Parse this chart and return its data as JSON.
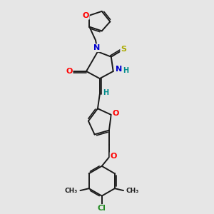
{
  "bg_color": "#e6e6e6",
  "bond_color": "#1a1a1a",
  "bond_width": 1.4,
  "atom_colors": {
    "O": "#ff0000",
    "N": "#0000cd",
    "S": "#aaaa00",
    "Cl": "#228b22",
    "H": "#008b8b",
    "C": "#1a1a1a"
  },
  "font_size": 8
}
